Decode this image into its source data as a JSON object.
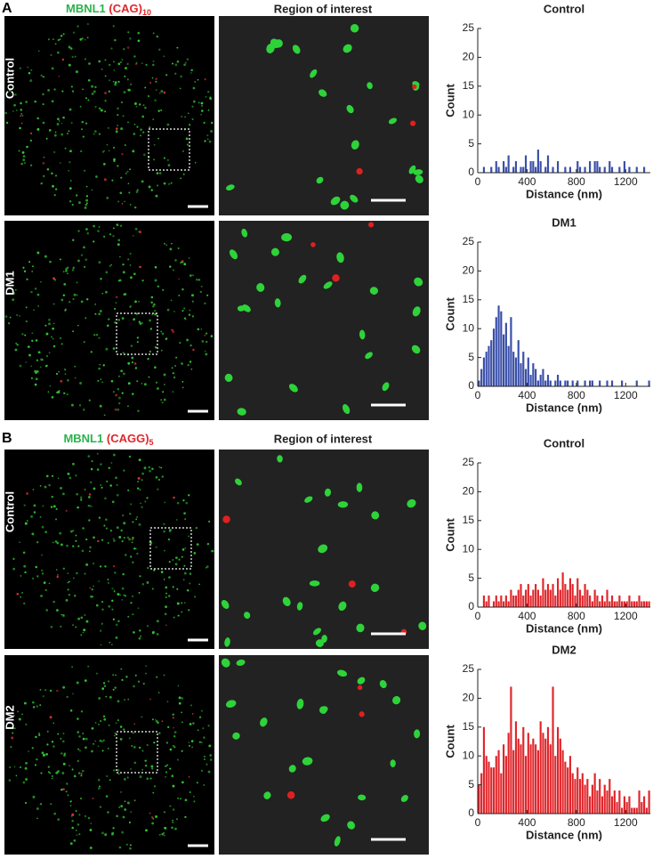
{
  "panels": [
    {
      "label": "A",
      "stain": "MBNL1",
      "probe": "(CAG)",
      "probe_sub": "10",
      "roi": "Region of interest",
      "rows": [
        "Control",
        "DM1"
      ]
    },
    {
      "label": "B",
      "stain": "MBNL1",
      "probe": "(CAGG)",
      "probe_sub": "5",
      "roi": "Region of interest",
      "rows": [
        "Control",
        "DM2"
      ]
    }
  ],
  "chart_data": [
    {
      "type": "histogram",
      "title": "Control",
      "xlabel": "Distance (nm)",
      "ylabel": "Count",
      "color": "#3a4fa8",
      "bins": [
        0,
        20,
        40,
        60,
        80,
        100,
        120,
        140,
        160,
        180,
        200,
        220,
        240,
        260,
        280,
        300,
        320,
        340,
        360,
        380,
        400,
        420,
        440,
        460,
        480,
        500,
        520,
        540,
        560,
        580,
        600,
        620,
        640,
        660,
        680,
        700,
        720,
        740,
        760,
        780,
        800,
        820,
        840,
        860,
        880,
        900,
        920,
        940,
        960,
        980,
        1000,
        1020,
        1040,
        1060,
        1080,
        1100,
        1120,
        1140,
        1160,
        1180,
        1200,
        1220,
        1240,
        1260,
        1280,
        1300,
        1320,
        1340,
        1360,
        1380,
        1400
      ],
      "counts": [
        0,
        0,
        1,
        0,
        0,
        1,
        0,
        2,
        1,
        0,
        2,
        1,
        3,
        0,
        1,
        2,
        0,
        1,
        1,
        3,
        0,
        2,
        2,
        1,
        4,
        2,
        0,
        1,
        3,
        0,
        1,
        0,
        2,
        0,
        0,
        1,
        0,
        1,
        0,
        0,
        2,
        1,
        0,
        1,
        0,
        2,
        0,
        2,
        2,
        1,
        0,
        1,
        0,
        2,
        1,
        0,
        0,
        1,
        0,
        2,
        0,
        1,
        0,
        0,
        1,
        0,
        0,
        1,
        0,
        0
      ],
      "xlim": [
        0,
        1400
      ],
      "ylim": [
        0,
        25
      ],
      "xticks": [
        0,
        400,
        800,
        1200
      ],
      "yticks": [
        0,
        5,
        10,
        15,
        20,
        25
      ]
    },
    {
      "type": "histogram",
      "title": "DM1",
      "xlabel": "Distance (nm)",
      "ylabel": "Count",
      "color": "#3a4fa8",
      "bins": [
        0,
        20,
        40,
        60,
        80,
        100,
        120,
        140,
        160,
        180,
        200,
        220,
        240,
        260,
        280,
        300,
        320,
        340,
        360,
        380,
        400,
        420,
        440,
        460,
        480,
        500,
        520,
        540,
        560,
        580,
        600,
        620,
        640,
        660,
        680,
        700,
        720,
        740,
        760,
        780,
        800,
        820,
        840,
        860,
        880,
        900,
        920,
        940,
        960,
        980,
        1000,
        1020,
        1040,
        1060,
        1080,
        1100,
        1120,
        1140,
        1160,
        1180,
        1200,
        1220,
        1240,
        1260,
        1280,
        1300,
        1320,
        1340,
        1360,
        1380,
        1400
      ],
      "counts": [
        1,
        3,
        5,
        6,
        7,
        8,
        10,
        12,
        14,
        13,
        9,
        11,
        7,
        12,
        6,
        5,
        8,
        4,
        6,
        3,
        5,
        2,
        4,
        3,
        1,
        2,
        3,
        1,
        2,
        1,
        0,
        1,
        2,
        1,
        0,
        1,
        1,
        0,
        1,
        0,
        1,
        0,
        0,
        1,
        0,
        1,
        1,
        0,
        0,
        1,
        0,
        0,
        1,
        0,
        1,
        0,
        0,
        0,
        1,
        0,
        0,
        0,
        0,
        0,
        1,
        0,
        0,
        0,
        0,
        1
      ],
      "xlim": [
        0,
        1400
      ],
      "ylim": [
        0,
        25
      ],
      "xticks": [
        0,
        400,
        800,
        1200
      ],
      "yticks": [
        0,
        5,
        10,
        15,
        20,
        25
      ]
    },
    {
      "type": "histogram",
      "title": "Control",
      "xlabel": "Distance (nm)",
      "ylabel": "Count",
      "color": "#e0262b",
      "bins": [
        0,
        20,
        40,
        60,
        80,
        100,
        120,
        140,
        160,
        180,
        200,
        220,
        240,
        260,
        280,
        300,
        320,
        340,
        360,
        380,
        400,
        420,
        440,
        460,
        480,
        500,
        520,
        540,
        560,
        580,
        600,
        620,
        640,
        660,
        680,
        700,
        720,
        740,
        760,
        780,
        800,
        820,
        840,
        860,
        880,
        900,
        920,
        940,
        960,
        980,
        1000,
        1020,
        1040,
        1060,
        1080,
        1100,
        1120,
        1140,
        1160,
        1180,
        1200,
        1220,
        1240,
        1260,
        1280,
        1300,
        1320,
        1340,
        1360,
        1380,
        1400
      ],
      "counts": [
        0,
        0,
        2,
        1,
        2,
        0,
        1,
        2,
        1,
        2,
        1,
        2,
        1,
        3,
        2,
        2,
        3,
        4,
        2,
        3,
        4,
        2,
        3,
        4,
        3,
        2,
        5,
        3,
        4,
        3,
        4,
        2,
        5,
        3,
        6,
        4,
        3,
        5,
        4,
        2,
        5,
        3,
        2,
        4,
        3,
        2,
        1,
        3,
        2,
        1,
        2,
        1,
        3,
        1,
        2,
        1,
        1,
        2,
        1,
        1,
        1,
        2,
        1,
        1,
        1,
        2,
        1,
        1,
        1,
        1
      ],
      "xlim": [
        0,
        1400
      ],
      "ylim": [
        0,
        25
      ],
      "xticks": [
        0,
        400,
        800,
        1200
      ],
      "yticks": [
        0,
        5,
        10,
        15,
        20,
        25
      ]
    },
    {
      "type": "histogram",
      "title": "DM2",
      "xlabel": "Distance (nm)",
      "ylabel": "Count",
      "color": "#e0262b",
      "bins": [
        0,
        20,
        40,
        60,
        80,
        100,
        120,
        140,
        160,
        180,
        200,
        220,
        240,
        260,
        280,
        300,
        320,
        340,
        360,
        380,
        400,
        420,
        440,
        460,
        480,
        500,
        520,
        540,
        560,
        580,
        600,
        620,
        640,
        660,
        680,
        700,
        720,
        740,
        760,
        780,
        800,
        820,
        840,
        860,
        880,
        900,
        920,
        940,
        960,
        980,
        1000,
        1020,
        1040,
        1060,
        1080,
        1100,
        1120,
        1140,
        1160,
        1180,
        1200,
        1220,
        1240,
        1260,
        1280,
        1300,
        1320,
        1340,
        1360,
        1380,
        1400
      ],
      "counts": [
        5,
        7,
        15,
        10,
        9,
        8,
        8,
        10,
        11,
        7,
        12,
        10,
        14,
        22,
        11,
        16,
        13,
        12,
        15,
        10,
        14,
        12,
        13,
        12,
        11,
        16,
        14,
        13,
        15,
        12,
        22,
        10,
        15,
        13,
        11,
        9,
        8,
        10,
        7,
        6,
        8,
        6,
        7,
        5,
        6,
        3,
        5,
        7,
        4,
        6,
        3,
        5,
        4,
        6,
        3,
        4,
        2,
        4,
        1,
        3,
        2,
        3,
        1,
        1,
        1,
        4,
        2,
        3,
        1,
        4
      ],
      "xlim": [
        0,
        1400
      ],
      "ylim": [
        0,
        25
      ],
      "xticks": [
        0,
        400,
        800,
        1200
      ],
      "yticks": [
        0,
        5,
        10,
        15,
        20,
        25
      ]
    }
  ]
}
